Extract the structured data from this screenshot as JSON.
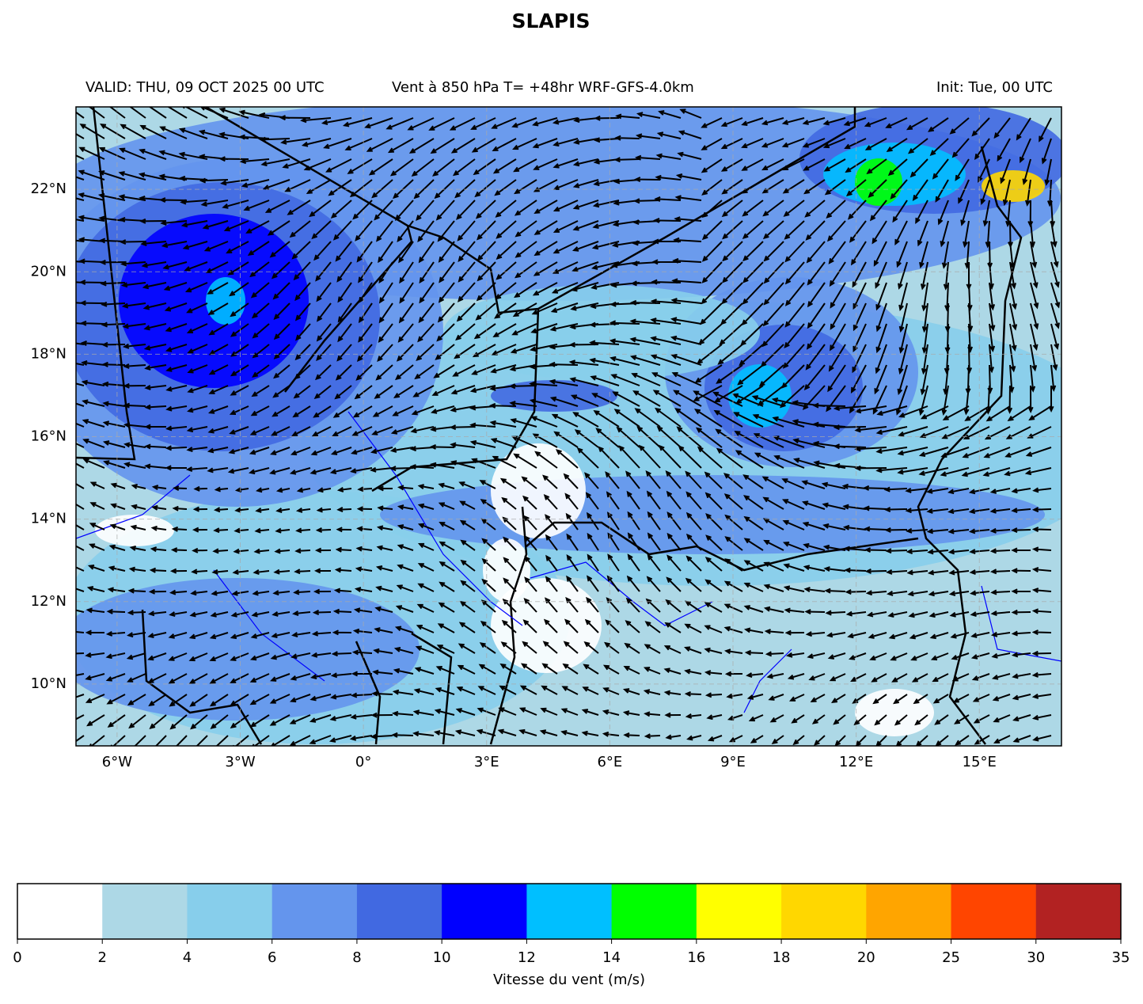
{
  "header": {
    "title": "SLAPIS"
  },
  "map": {
    "valid": "VALID: THU, 09 OCT 2025 00 UTC",
    "description": "Vent à 850 hPa T= +48hr  WRF-GFS-4.0km",
    "init": "Init: Tue, 00 UTC",
    "xlim": [
      -7,
      17
    ],
    "ylim": [
      8.5,
      24
    ],
    "xticks": [
      {
        "value": -6,
        "label": "6°W"
      },
      {
        "value": -3,
        "label": "3°W"
      },
      {
        "value": 0,
        "label": "0°"
      },
      {
        "value": 3,
        "label": "3°E"
      },
      {
        "value": 6,
        "label": "6°E"
      },
      {
        "value": 9,
        "label": "9°E"
      },
      {
        "value": 12,
        "label": "12°E"
      },
      {
        "value": 15,
        "label": "15°E"
      }
    ],
    "yticks": [
      {
        "value": 10,
        "label": "10°N"
      },
      {
        "value": 12,
        "label": "12°N"
      },
      {
        "value": 14,
        "label": "14°N"
      },
      {
        "value": 16,
        "label": "16°N"
      },
      {
        "value": 18,
        "label": "18°N"
      },
      {
        "value": 20,
        "label": "20°N"
      },
      {
        "value": 22,
        "label": "22°N"
      }
    ],
    "grid": true
  },
  "colorbar": {
    "levels": [
      0,
      2,
      4,
      6,
      8,
      10,
      12,
      14,
      16,
      18,
      20,
      25,
      30,
      35
    ],
    "colors": [
      "#ffffff",
      "#add8e6",
      "#87ceeb",
      "#6495ed",
      "#4169e1",
      "#0000ff",
      "#00bfff",
      "#00ff00",
      "#ffff00",
      "#ffd700",
      "#ffa500",
      "#ff4500",
      "#b22222"
    ],
    "label": "Vitesse du vent (m/s)"
  }
}
